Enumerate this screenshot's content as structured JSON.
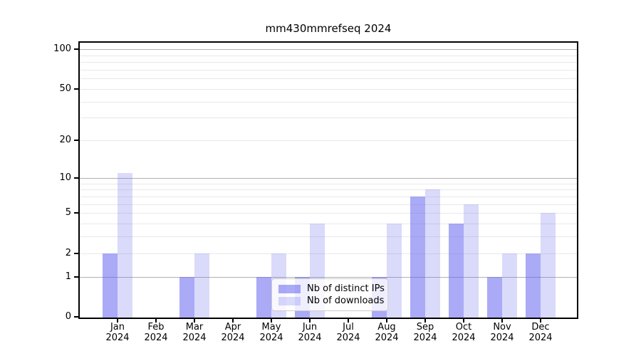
{
  "chart_data": {
    "type": "bar",
    "title": "mm430mmrefseq 2024",
    "months": [
      "Jan",
      "Feb",
      "Mar",
      "Apr",
      "May",
      "Jun",
      "Jul",
      "Aug",
      "Sep",
      "Oct",
      "Nov",
      "Dec"
    ],
    "year_label": "2024",
    "series": [
      {
        "name": "Nb of distinct IPs",
        "color": "rgba(100,100,240,0.55)",
        "values": [
          2,
          0,
          1,
          0,
          1,
          1,
          0,
          1,
          7,
          4,
          1,
          2
        ]
      },
      {
        "name": "Nb of downloads",
        "color": "rgba(100,100,240,0.24)",
        "values": [
          11,
          0,
          2,
          0,
          2,
          4,
          0,
          4,
          8,
          6,
          2,
          5
        ]
      }
    ],
    "yscale": "log1p",
    "ylim": [
      0,
      110
    ],
    "yticks": [
      0,
      1,
      2,
      5,
      10,
      20,
      50,
      100
    ],
    "grid": {
      "major": [
        1,
        10,
        100
      ],
      "minor": [
        2,
        3,
        4,
        5,
        6,
        7,
        8,
        9,
        20,
        30,
        40,
        50,
        60,
        70,
        80,
        90
      ]
    },
    "legend_position": "lower center",
    "colors": {
      "major_grid": "#b0b0b0",
      "minor_grid": "#e8e8e8",
      "axis": "#000000",
      "background": "#ffffff"
    }
  }
}
